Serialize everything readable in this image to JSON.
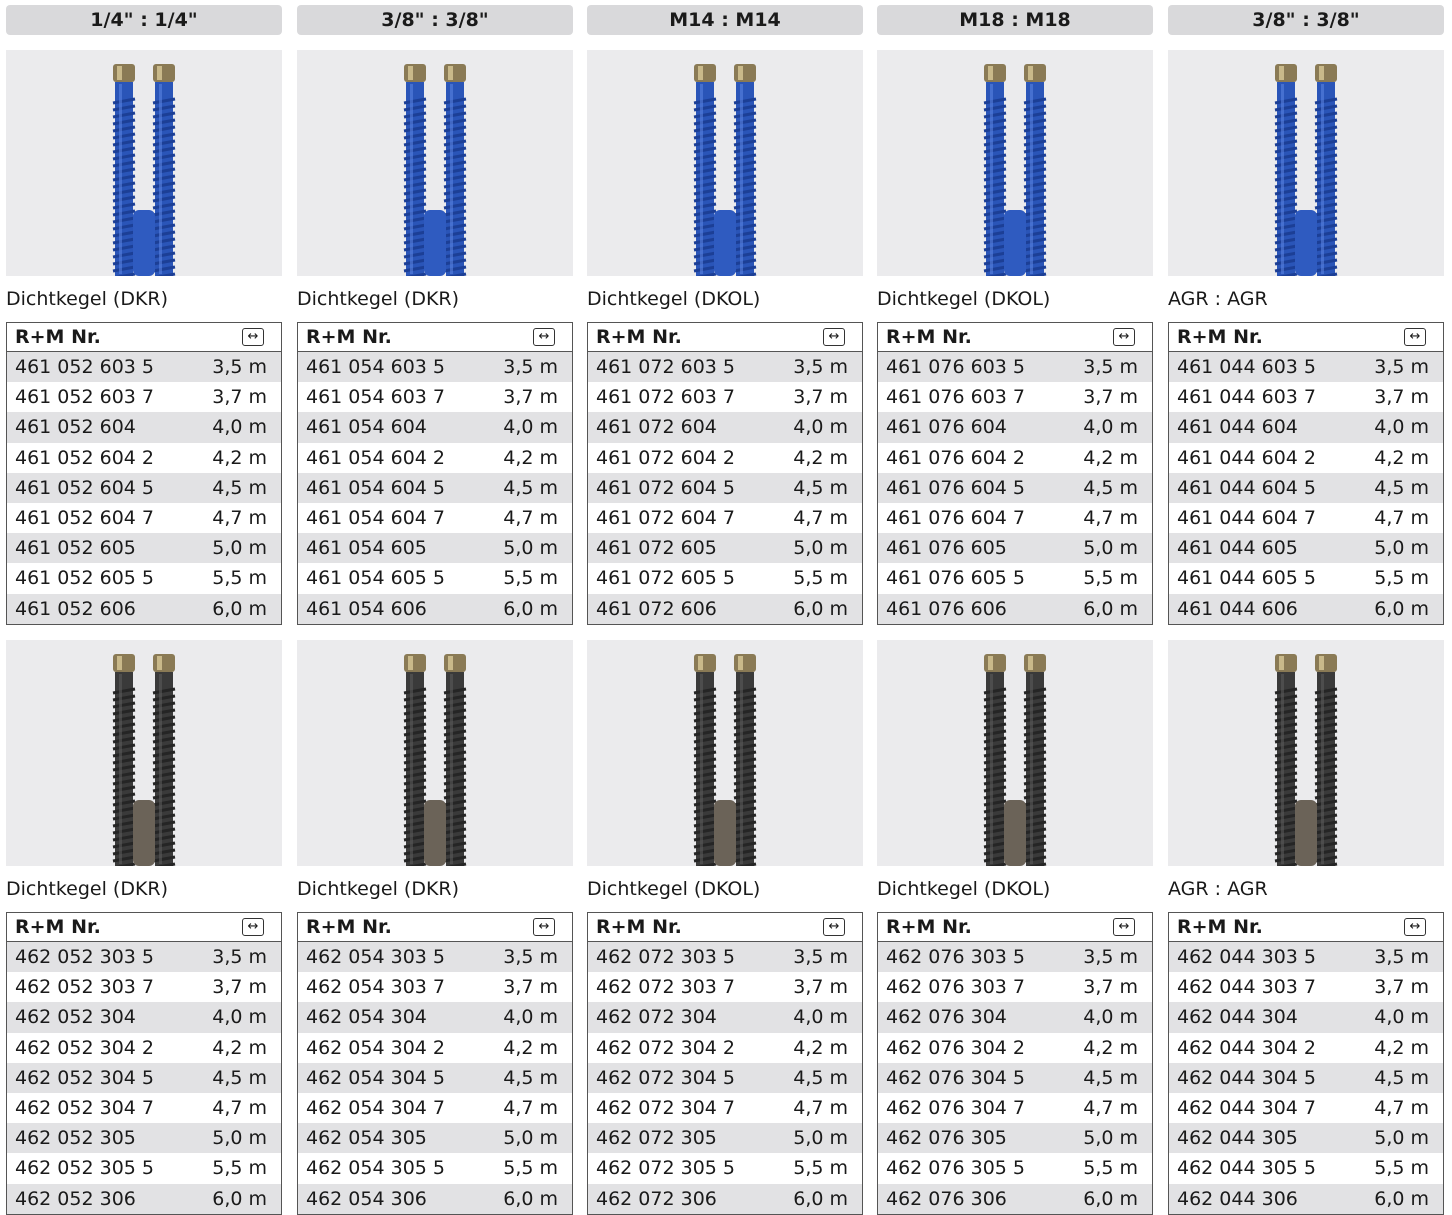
{
  "columns": [
    {
      "header": "1/4\" : 1/4\"",
      "hose_color_top": "#2a55b8",
      "hose_color_bottom": "#3a3a3a",
      "fitting_top": "nut-icon",
      "top": {
        "caption": "Dichtkegel (DKR)",
        "col_nr": "R+M Nr.",
        "rows": [
          {
            "nr": "461 052 603 5",
            "len": "3,5 m"
          },
          {
            "nr": "461 052 603 7",
            "len": "3,7 m"
          },
          {
            "nr": "461 052 604",
            "len": "4,0 m"
          },
          {
            "nr": "461 052 604 2",
            "len": "4,2 m"
          },
          {
            "nr": "461 052 604 5",
            "len": "4,5 m"
          },
          {
            "nr": "461 052 604 7",
            "len": "4,7 m"
          },
          {
            "nr": "461 052 605",
            "len": "5,0 m"
          },
          {
            "nr": "461 052 605 5",
            "len": "5,5 m"
          },
          {
            "nr": "461 052 606",
            "len": "6,0 m"
          }
        ]
      },
      "bottom": {
        "caption": "Dichtkegel (DKR)",
        "col_nr": "R+M Nr.",
        "rows": [
          {
            "nr": "462 052 303 5",
            "len": "3,5 m"
          },
          {
            "nr": "462 052 303 7",
            "len": "3,7 m"
          },
          {
            "nr": "462 052 304",
            "len": "4,0 m"
          },
          {
            "nr": "462 052 304 2",
            "len": "4,2 m"
          },
          {
            "nr": "462 052 304 5",
            "len": "4,5 m"
          },
          {
            "nr": "462 052 304 7",
            "len": "4,7 m"
          },
          {
            "nr": "462 052 305",
            "len": "5,0 m"
          },
          {
            "nr": "462 052 305 5",
            "len": "5,5 m"
          },
          {
            "nr": "462 052 306",
            "len": "6,0 m"
          }
        ]
      }
    },
    {
      "header": "3/8\" : 3/8\"",
      "top": {
        "caption": "Dichtkegel (DKR)",
        "col_nr": "R+M Nr.",
        "rows": [
          {
            "nr": "461 054 603 5",
            "len": "3,5 m"
          },
          {
            "nr": "461 054 603 7",
            "len": "3,7 m"
          },
          {
            "nr": "461 054 604",
            "len": "4,0 m"
          },
          {
            "nr": "461 054 604 2",
            "len": "4,2 m"
          },
          {
            "nr": "461 054 604 5",
            "len": "4,5 m"
          },
          {
            "nr": "461 054 604 7",
            "len": "4,7 m"
          },
          {
            "nr": "461 054 605",
            "len": "5,0 m"
          },
          {
            "nr": "461 054 605 5",
            "len": "5,5 m"
          },
          {
            "nr": "461 054 606",
            "len": "6,0 m"
          }
        ]
      },
      "bottom": {
        "caption": "Dichtkegel (DKR)",
        "col_nr": "R+M Nr.",
        "rows": [
          {
            "nr": "462 054 303 5",
            "len": "3,5 m"
          },
          {
            "nr": "462 054 303 7",
            "len": "3,7 m"
          },
          {
            "nr": "462 054 304",
            "len": "4,0 m"
          },
          {
            "nr": "462 054 304 2",
            "len": "4,2 m"
          },
          {
            "nr": "462 054 304 5",
            "len": "4,5 m"
          },
          {
            "nr": "462 054 304 7",
            "len": "4,7 m"
          },
          {
            "nr": "462 054 305",
            "len": "5,0 m"
          },
          {
            "nr": "462 054 305 5",
            "len": "5,5 m"
          },
          {
            "nr": "462 054 306",
            "len": "6,0 m"
          }
        ]
      }
    },
    {
      "header": "M14 : M14",
      "top": {
        "caption": "Dichtkegel (DKOL)",
        "col_nr": "R+M Nr.",
        "rows": [
          {
            "nr": "461 072 603 5",
            "len": "3,5 m"
          },
          {
            "nr": "461 072 603 7",
            "len": "3,7 m"
          },
          {
            "nr": "461 072 604",
            "len": "4,0 m"
          },
          {
            "nr": "461 072 604 2",
            "len": "4,2 m"
          },
          {
            "nr": "461 072 604 5",
            "len": "4,5 m"
          },
          {
            "nr": "461 072 604 7",
            "len": "4,7 m"
          },
          {
            "nr": "461 072 605",
            "len": "5,0 m"
          },
          {
            "nr": "461 072 605 5",
            "len": "5,5 m"
          },
          {
            "nr": "461 072 606",
            "len": "6,0 m"
          }
        ]
      },
      "bottom": {
        "caption": "Dichtkegel (DKOL)",
        "col_nr": "R+M Nr.",
        "rows": [
          {
            "nr": "462 072 303 5",
            "len": "3,5 m"
          },
          {
            "nr": "462 072 303 7",
            "len": "3,7 m"
          },
          {
            "nr": "462 072 304",
            "len": "4,0 m"
          },
          {
            "nr": "462 072 304 2",
            "len": "4,2 m"
          },
          {
            "nr": "462 072 304 5",
            "len": "4,5 m"
          },
          {
            "nr": "462 072 304 7",
            "len": "4,7 m"
          },
          {
            "nr": "462 072 305",
            "len": "5,0 m"
          },
          {
            "nr": "462 072 305 5",
            "len": "5,5 m"
          },
          {
            "nr": "462 072 306",
            "len": "6,0 m"
          }
        ]
      }
    },
    {
      "header": "M18 : M18",
      "top": {
        "caption": "Dichtkegel (DKOL)",
        "col_nr": "R+M Nr.",
        "rows": [
          {
            "nr": "461 076 603 5",
            "len": "3,5 m"
          },
          {
            "nr": "461 076 603 7",
            "len": "3,7 m"
          },
          {
            "nr": "461 076 604",
            "len": "4,0 m"
          },
          {
            "nr": "461 076 604 2",
            "len": "4,2 m"
          },
          {
            "nr": "461 076 604 5",
            "len": "4,5 m"
          },
          {
            "nr": "461 076 604 7",
            "len": "4,7 m"
          },
          {
            "nr": "461 076 605",
            "len": "5,0 m"
          },
          {
            "nr": "461 076 605 5",
            "len": "5,5 m"
          },
          {
            "nr": "461 076 606",
            "len": "6,0 m"
          }
        ]
      },
      "bottom": {
        "caption": "Dichtkegel (DKOL)",
        "col_nr": "R+M Nr.",
        "rows": [
          {
            "nr": "462 076 303 5",
            "len": "3,5 m"
          },
          {
            "nr": "462 076 303 7",
            "len": "3,7 m"
          },
          {
            "nr": "462 076 304",
            "len": "4,0 m"
          },
          {
            "nr": "462 076 304 2",
            "len": "4,2 m"
          },
          {
            "nr": "462 076 304 5",
            "len": "4,5 m"
          },
          {
            "nr": "462 076 304 7",
            "len": "4,7 m"
          },
          {
            "nr": "462 076 305",
            "len": "5,0 m"
          },
          {
            "nr": "462 076 305 5",
            "len": "5,5 m"
          },
          {
            "nr": "462 076 306",
            "len": "6,0 m"
          }
        ]
      }
    },
    {
      "header": "3/8\" : 3/8\"",
      "top": {
        "caption": "AGR : AGR",
        "col_nr": "R+M Nr.",
        "rows": [
          {
            "nr": "461 044 603 5",
            "len": "3,5 m"
          },
          {
            "nr": "461 044 603 7",
            "len": "3,7 m"
          },
          {
            "nr": "461 044 604",
            "len": "4,0 m"
          },
          {
            "nr": "461 044 604 2",
            "len": "4,2 m"
          },
          {
            "nr": "461 044 604 5",
            "len": "4,5 m"
          },
          {
            "nr": "461 044 604 7",
            "len": "4,7 m"
          },
          {
            "nr": "461 044 605",
            "len": "5,0 m"
          },
          {
            "nr": "461 044 605 5",
            "len": "5,5 m"
          },
          {
            "nr": "461 044 606",
            "len": "6,0 m"
          }
        ]
      },
      "bottom": {
        "caption": "AGR : AGR",
        "col_nr": "R+M Nr.",
        "rows": [
          {
            "nr": "462 044 303 5",
            "len": "3,5 m"
          },
          {
            "nr": "462 044 303 7",
            "len": "3,7 m"
          },
          {
            "nr": "462 044 304",
            "len": "4,0 m"
          },
          {
            "nr": "462 044 304 2",
            "len": "4,2 m"
          },
          {
            "nr": "462 044 304 5",
            "len": "4,5 m"
          },
          {
            "nr": "462 044 304 7",
            "len": "4,7 m"
          },
          {
            "nr": "462 044 305",
            "len": "5,0 m"
          },
          {
            "nr": "462 044 305 5",
            "len": "5,5 m"
          },
          {
            "nr": "462 044 306",
            "len": "6,0 m"
          }
        ]
      }
    }
  ],
  "colors": {
    "header_bg": "#d9d9db",
    "image_bg": "#ebebed",
    "row_alt": "#e2e2e4",
    "hose_blue": "#2a55b8",
    "hose_black": "#3a3a3a",
    "fitting_brass": "#8a7a55"
  },
  "icons": {
    "length": "length-arrows-icon",
    "length_glyph": "↔"
  }
}
